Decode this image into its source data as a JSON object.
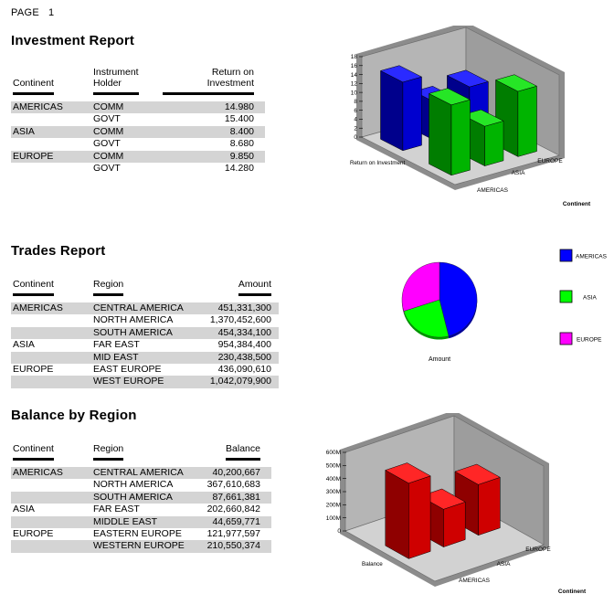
{
  "page": {
    "label": "PAGE",
    "number": "1"
  },
  "investment": {
    "title": "Investment Report",
    "columns": [
      "Continent",
      "Instrument\nHolder",
      "Return on Investment"
    ],
    "rows": [
      {
        "cells": [
          "AMERICAS",
          "COMM",
          "14.980"
        ],
        "shaded": true
      },
      {
        "cells": [
          "",
          "GOVT",
          "15.400"
        ],
        "shaded": false
      },
      {
        "cells": [
          "ASIA",
          "COMM",
          "8.400"
        ],
        "shaded": true
      },
      {
        "cells": [
          "",
          "GOVT",
          "8.680"
        ],
        "shaded": false
      },
      {
        "cells": [
          "EUROPE",
          "COMM",
          "9.850"
        ],
        "shaded": true
      },
      {
        "cells": [
          "",
          "GOVT",
          "14.280"
        ],
        "shaded": false
      }
    ]
  },
  "trades": {
    "title": "Trades Report",
    "columns": [
      "Continent",
      "Region",
      "Amount"
    ],
    "rows": [
      {
        "cells": [
          "AMERICAS",
          "CENTRAL AMERICA",
          "451,331,300"
        ],
        "shaded": true
      },
      {
        "cells": [
          "",
          "NORTH AMERICA",
          "1,370,452,600"
        ],
        "shaded": false
      },
      {
        "cells": [
          "",
          "SOUTH AMERICA",
          "454,334,100"
        ],
        "shaded": true
      },
      {
        "cells": [
          "ASIA",
          "FAR EAST",
          "954,384,400"
        ],
        "shaded": false
      },
      {
        "cells": [
          "",
          "MID EAST",
          "230,438,500"
        ],
        "shaded": true
      },
      {
        "cells": [
          "EUROPE",
          "EAST EUROPE",
          "436,090,610"
        ],
        "shaded": false
      },
      {
        "cells": [
          "",
          "WEST EUROPE",
          "1,042,079,900"
        ],
        "shaded": true
      }
    ]
  },
  "balance": {
    "title": "Balance by Region",
    "columns": [
      "Continent",
      "Region",
      "Balance"
    ],
    "rows": [
      {
        "cells": [
          "AMERICAS",
          "CENTRAL AMERICA",
          "40,200,667"
        ],
        "shaded": true
      },
      {
        "cells": [
          "",
          "NORTH AMERICA",
          "367,610,683"
        ],
        "shaded": false
      },
      {
        "cells": [
          "",
          "SOUTH AMERICA",
          "87,661,381"
        ],
        "shaded": true
      },
      {
        "cells": [
          "ASIA",
          "FAR EAST",
          "202,660,842"
        ],
        "shaded": false
      },
      {
        "cells": [
          "",
          "MIDDLE EAST",
          "44,659,771"
        ],
        "shaded": true
      },
      {
        "cells": [
          "EUROPE",
          "EASTERN EUROPE",
          "121,977,597"
        ],
        "shaded": false
      },
      {
        "cells": [
          "",
          "WESTERN EUROPE",
          "210,550,374"
        ],
        "shaded": true
      }
    ]
  },
  "chart_data": [
    {
      "type": "bar3d",
      "title": "",
      "ylabel": "Return on Investment",
      "xlabel": "Continent",
      "categories": [
        "AMERICAS",
        "ASIA",
        "EUROPE"
      ],
      "series": [
        {
          "name": "COMM",
          "color": "#0000ff",
          "values": [
            14.98,
            8.4,
            9.85
          ]
        },
        {
          "name": "GOVT",
          "color": "#00ff00",
          "values": [
            15.4,
            8.68,
            14.28
          ]
        }
      ],
      "yticks": [
        "18",
        "16",
        "14",
        "12",
        "10",
        "8",
        "6",
        "4",
        "2",
        "0"
      ],
      "ylim": [
        0,
        18
      ],
      "grid": false,
      "legend_position": "none"
    },
    {
      "type": "pie",
      "title": "",
      "label": "Amount",
      "legend_position": "right",
      "slices": [
        {
          "name": "AMERICAS",
          "value": 2276118000,
          "color": "#0000ff"
        },
        {
          "name": "ASIA",
          "value": 1184822900,
          "color": "#00ff00"
        },
        {
          "name": "EUROPE",
          "value": 1478170510,
          "color": "#ff00ff"
        }
      ]
    },
    {
      "type": "bar3d",
      "title": "",
      "ylabel": "Balance",
      "xlabel": "Continent",
      "categories": [
        "AMERICAS",
        "ASIA",
        "EUROPE"
      ],
      "series": [
        {
          "name": "Balance",
          "color": "#ff0000",
          "values": [
            495472731,
            247320613,
            332527971
          ]
        }
      ],
      "yticks": [
        "600M",
        "500M",
        "400M",
        "300M",
        "200M",
        "100M",
        "0"
      ],
      "ylim": [
        0,
        600000000
      ],
      "grid": false,
      "legend_position": "none"
    }
  ]
}
